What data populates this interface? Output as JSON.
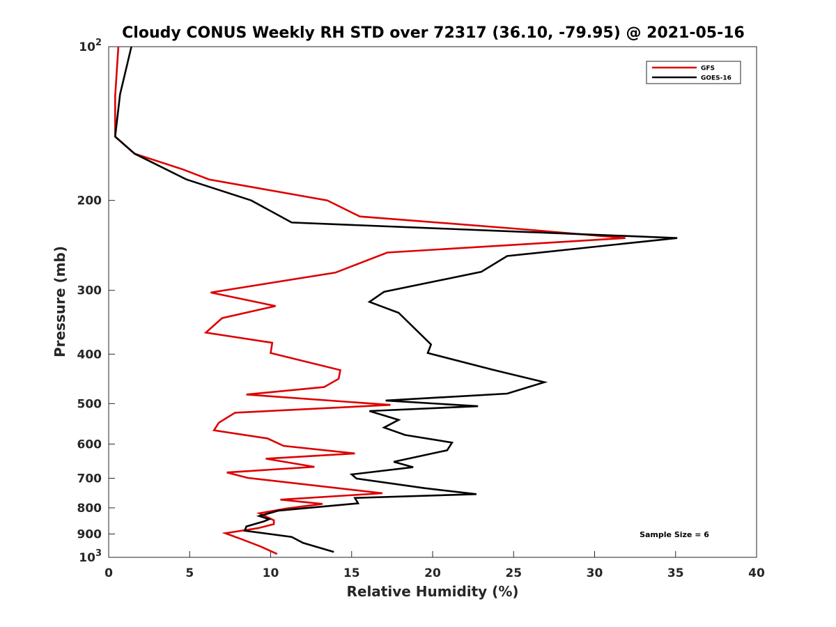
{
  "chart_data": {
    "type": "line",
    "title": "Cloudy CONUS Weekly RH STD over 72317 (36.10, -79.95) @ 2021-05-16",
    "xlabel": "Relative Humidity (%)",
    "ylabel": "Pressure (mb)",
    "xlim": [
      0,
      40
    ],
    "ylim": [
      100,
      1000
    ],
    "y_scale": "log",
    "y_reversed": true,
    "x_ticks": [
      "0",
      "5",
      "10",
      "15",
      "20",
      "25",
      "30",
      "35",
      "40"
    ],
    "y_ticks": [
      {
        "value": 100,
        "base": "10",
        "exp": "2"
      },
      {
        "value": 200,
        "label": "200"
      },
      {
        "value": 300,
        "label": "300"
      },
      {
        "value": 400,
        "label": "400"
      },
      {
        "value": 500,
        "label": "500"
      },
      {
        "value": 600,
        "label": "600"
      },
      {
        "value": 700,
        "label": "700"
      },
      {
        "value": 800,
        "label": "800"
      },
      {
        "value": 900,
        "label": "900"
      },
      {
        "value": 1000,
        "base": "10",
        "exp": "3"
      }
    ],
    "legend_position": "top-right",
    "grid": false,
    "annotation": "Sample Size = 6",
    "series": [
      {
        "name": "GFS",
        "color": "#dd0000",
        "points": [
          [
            0.6,
            100
          ],
          [
            0.4,
            125
          ],
          [
            0.4,
            150
          ],
          [
            1.6,
            162
          ],
          [
            4.6,
            174
          ],
          [
            6.2,
            182
          ],
          [
            13.5,
            200
          ],
          [
            15.5,
            215
          ],
          [
            25.0,
            227
          ],
          [
            31.9,
            237
          ],
          [
            17.2,
            253
          ],
          [
            14.0,
            277
          ],
          [
            6.3,
            303
          ],
          [
            10.3,
            322
          ],
          [
            7.0,
            340
          ],
          [
            6.0,
            363
          ],
          [
            10.1,
            380
          ],
          [
            10.0,
            398
          ],
          [
            14.3,
            430
          ],
          [
            14.2,
            447
          ],
          [
            13.3,
            464
          ],
          [
            8.5,
            480
          ],
          [
            17.4,
            503
          ],
          [
            7.8,
            521
          ],
          [
            6.8,
            545
          ],
          [
            6.5,
            564
          ],
          [
            9.8,
            585
          ],
          [
            10.8,
            605
          ],
          [
            15.2,
            626
          ],
          [
            9.7,
            641
          ],
          [
            12.7,
            665
          ],
          [
            7.3,
            682
          ],
          [
            8.6,
            699
          ],
          [
            16.9,
            749
          ],
          [
            10.6,
            771
          ],
          [
            13.2,
            786
          ],
          [
            11.0,
            802
          ],
          [
            9.3,
            820
          ],
          [
            10.2,
            846
          ],
          [
            10.2,
            861
          ],
          [
            9.2,
            877
          ],
          [
            7.2,
            897
          ],
          [
            8.3,
            924
          ],
          [
            9.4,
            953
          ],
          [
            10.4,
            985
          ]
        ]
      },
      {
        "name": "GOES-16",
        "color": "#000000",
        "points": [
          [
            1.4,
            100
          ],
          [
            0.7,
            124
          ],
          [
            0.4,
            150
          ],
          [
            1.6,
            162
          ],
          [
            4.8,
            182
          ],
          [
            8.8,
            200
          ],
          [
            11.3,
            221
          ],
          [
            35.1,
            237
          ],
          [
            24.6,
            257
          ],
          [
            23.0,
            276
          ],
          [
            17.0,
            302
          ],
          [
            16.1,
            316
          ],
          [
            17.9,
            332
          ],
          [
            19.9,
            383
          ],
          [
            19.7,
            398
          ],
          [
            23.8,
            430
          ],
          [
            26.9,
            454
          ],
          [
            24.6,
            478
          ],
          [
            17.1,
            493
          ],
          [
            22.8,
            506
          ],
          [
            16.1,
            517
          ],
          [
            17.9,
            538
          ],
          [
            17.0,
            557
          ],
          [
            18.3,
            576
          ],
          [
            21.2,
            596
          ],
          [
            20.9,
            617
          ],
          [
            17.6,
            650
          ],
          [
            18.8,
            666
          ],
          [
            15.0,
            688
          ],
          [
            15.3,
            701
          ],
          [
            19.5,
            732
          ],
          [
            22.7,
            752
          ],
          [
            15.2,
            765
          ],
          [
            15.4,
            784
          ],
          [
            10.5,
            810
          ],
          [
            9.3,
            830
          ],
          [
            9.9,
            842
          ],
          [
            9.6,
            850
          ],
          [
            8.5,
            870
          ],
          [
            8.4,
            887
          ],
          [
            11.3,
            912
          ],
          [
            12.0,
            937
          ],
          [
            13.9,
            976
          ]
        ]
      }
    ]
  }
}
